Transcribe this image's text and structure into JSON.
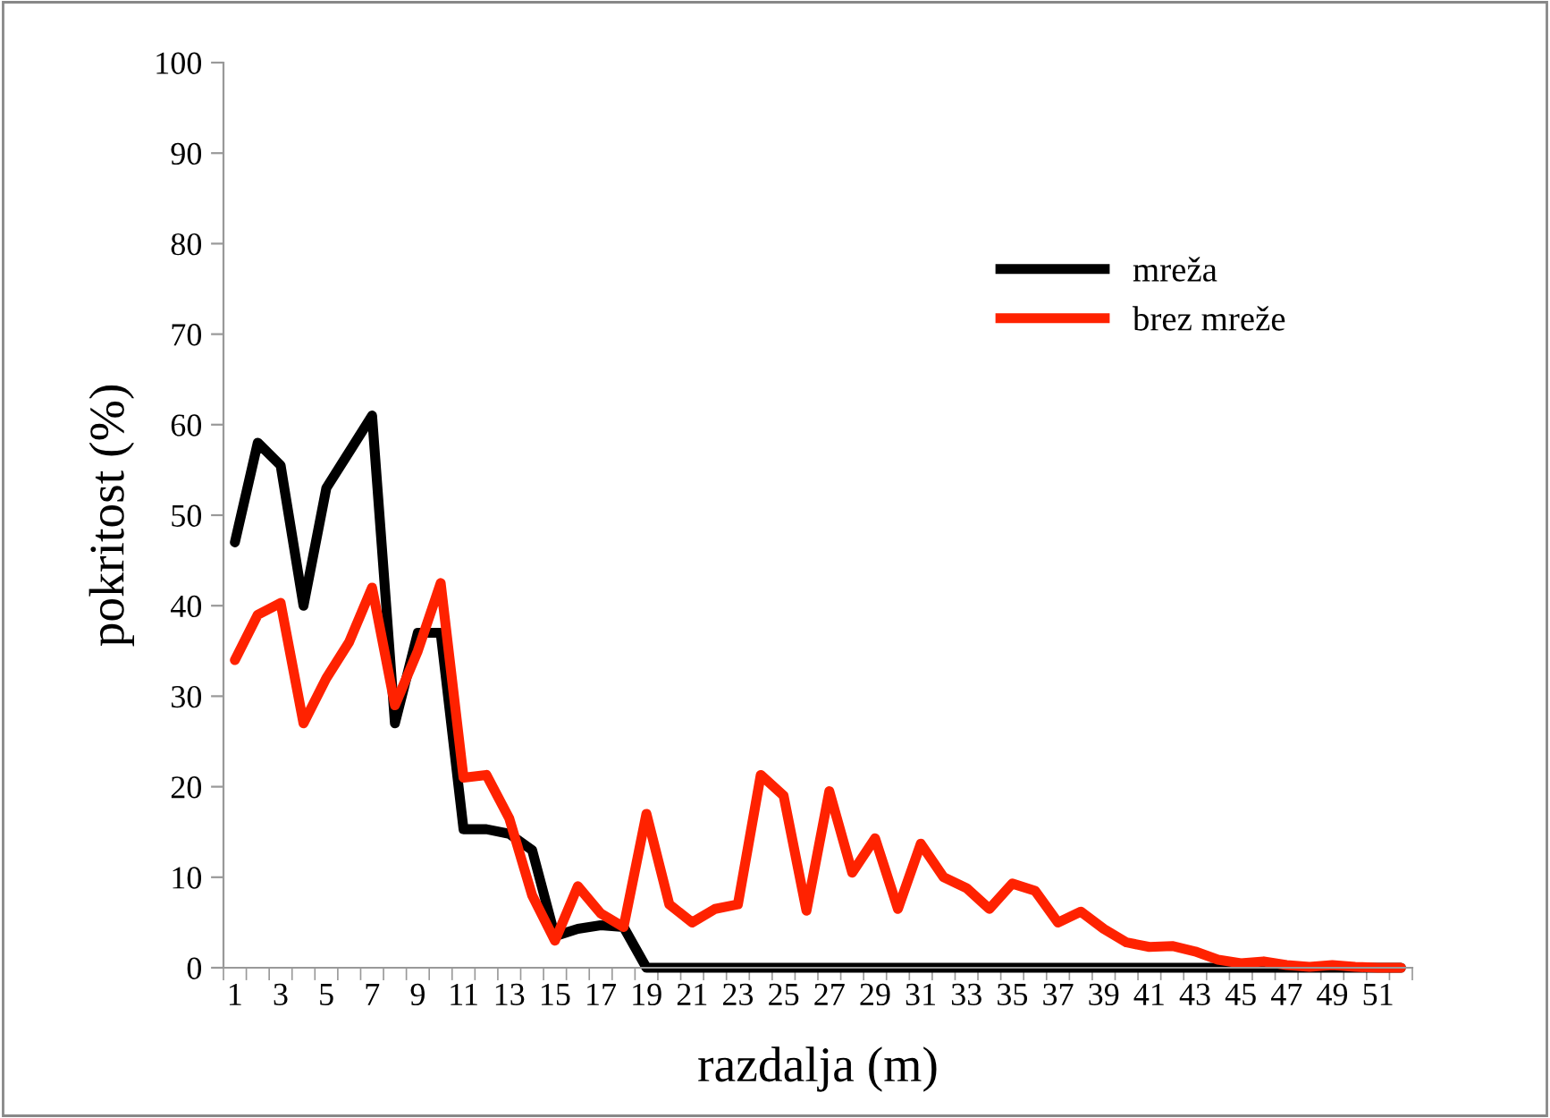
{
  "chart_data": {
    "type": "line",
    "xlabel": "razdalja (m)",
    "ylabel": "pokritost (%)",
    "categories": [
      "1",
      null,
      "3",
      null,
      "5",
      null,
      "7",
      null,
      "9",
      null,
      "11",
      null,
      "13",
      null,
      "15",
      null,
      "17",
      null,
      "19",
      null,
      "21",
      null,
      "23",
      null,
      "25",
      null,
      "27",
      null,
      "29",
      null,
      "31",
      null,
      "33",
      null,
      "35",
      null,
      "37",
      null,
      "39",
      null,
      "41",
      null,
      "43",
      null,
      "45",
      null,
      "47",
      null,
      "49",
      null,
      "51",
      null
    ],
    "series": [
      {
        "name": "mreža",
        "color": "#000000",
        "values": [
          47,
          58,
          55.5,
          40,
          53,
          57,
          61,
          27,
          37,
          37,
          15.3,
          15.3,
          14.8,
          13,
          3.5,
          4.3,
          4.7,
          4.5,
          0,
          0,
          0,
          0,
          0,
          0,
          0,
          0,
          0,
          0,
          0,
          0,
          0,
          0,
          0,
          0,
          0,
          0,
          0,
          0,
          0,
          0,
          0,
          0,
          0,
          0,
          0,
          0,
          0,
          0,
          0,
          0,
          0,
          0
        ]
      },
      {
        "name": "brez mreže",
        "color": "#ff2200",
        "values": [
          34,
          39,
          40.3,
          27,
          32,
          36,
          42,
          29,
          35,
          42.5,
          21,
          21.3,
          16.5,
          8,
          3,
          9,
          6,
          4.5,
          17,
          7,
          5,
          6.5,
          7,
          21.3,
          19,
          6.3,
          19.5,
          10.5,
          14.3,
          6.5,
          13.7,
          10,
          8.8,
          6.5,
          9.3,
          8.5,
          5,
          6.2,
          4.3,
          2.8,
          2.3,
          2.4,
          1.8,
          0.9,
          0.5,
          0.7,
          0.3,
          0.1,
          0.3,
          0.1,
          0,
          0
        ]
      }
    ],
    "ylim": [
      0,
      100
    ],
    "yticks": [
      0,
      10,
      20,
      30,
      40,
      50,
      60,
      70,
      80,
      90,
      100
    ],
    "legend": "top right",
    "line_style": "solid",
    "marker": "none",
    "grid": false
  }
}
